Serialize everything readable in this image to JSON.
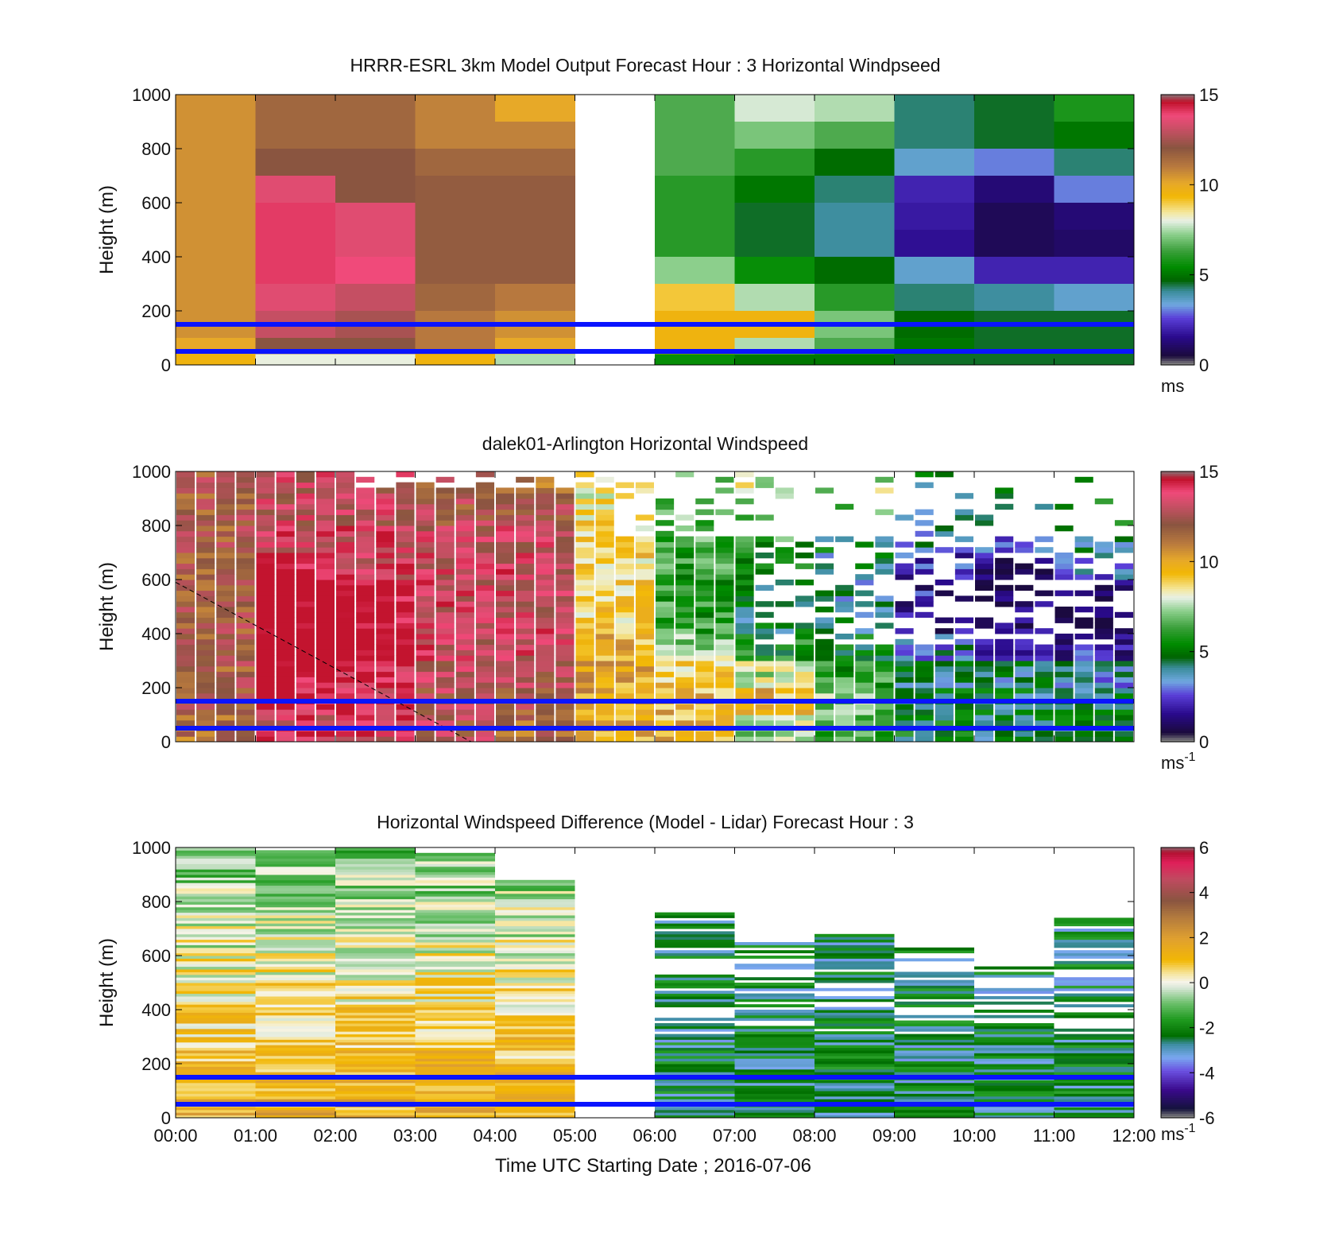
{
  "figure": {
    "colors": {
      "reference_line": "#0a14ff",
      "background": "#ffffff",
      "missing": "#808080"
    }
  },
  "chart_data": [
    {
      "type": "heatmap",
      "title": "HRRR-ESRL 3km Model Output   Forecast Hour : 3 Horizontal Windpseed",
      "ylabel": "Height (m)",
      "xlabel": "",
      "xlim": [
        0,
        12
      ],
      "ylim": [
        0,
        1000
      ],
      "yticks": [
        "0",
        "200",
        "400",
        "600",
        "800",
        "1000"
      ],
      "xticks": [],
      "colorbar": {
        "ticks": [
          "0",
          "5",
          "10",
          "15"
        ],
        "range": [
          0,
          15
        ],
        "unit": "ms",
        "unit_sup": ""
      },
      "reference_heights_m": [
        150,
        50
      ],
      "heights_m": [
        1000,
        900,
        800,
        700,
        600,
        500,
        400,
        300,
        200,
        100,
        40
      ],
      "hours_utc": [
        "00:00",
        "01:00",
        "02:00",
        "03:00",
        "04:00",
        "05:00",
        "06:00",
        "07:00",
        "08:00",
        "09:00",
        "10:00",
        "11:00"
      ],
      "wind_speed_ms": [
        [
          10.5,
          11.5,
          11.5,
          10.8,
          10.0,
          null,
          6.5,
          7.8,
          7.5,
          4.2,
          4.5,
          5.8
        ],
        [
          10.5,
          11.5,
          11.5,
          10.8,
          10.8,
          null,
          6.5,
          7.0,
          6.5,
          4.2,
          4.5,
          5.0
        ],
        [
          10.5,
          12.0,
          12.0,
          11.5,
          11.5,
          null,
          6.5,
          6.0,
          4.8,
          3.5,
          3.0,
          4.2
        ],
        [
          10.5,
          13.5,
          12.0,
          11.8,
          11.8,
          null,
          6.0,
          5.0,
          4.2,
          2.0,
          1.2,
          3.0
        ],
        [
          10.5,
          14.0,
          13.5,
          11.8,
          11.8,
          null,
          6.0,
          4.5,
          4.0,
          1.8,
          0.8,
          1.2
        ],
        [
          10.5,
          14.0,
          13.5,
          11.8,
          11.8,
          null,
          6.0,
          4.5,
          4.0,
          1.6,
          0.8,
          1.0
        ],
        [
          10.5,
          14.0,
          13.8,
          11.8,
          11.8,
          null,
          7.2,
          5.5,
          4.8,
          3.5,
          2.0,
          2.0
        ],
        [
          10.5,
          13.5,
          13.0,
          11.5,
          11.0,
          null,
          9.0,
          7.5,
          6.0,
          4.2,
          4.0,
          3.5
        ],
        [
          10.5,
          13.0,
          12.5,
          11.0,
          10.5,
          null,
          9.5,
          9.5,
          7.0,
          4.8,
          4.5,
          4.5
        ],
        [
          10.0,
          12.0,
          12.0,
          11.0,
          10.0,
          null,
          9.5,
          7.5,
          6.5,
          5.0,
          4.5,
          4.5
        ],
        [
          9.5,
          8.0,
          8.0,
          9.5,
          7.5,
          null,
          5.5,
          5.0,
          5.0,
          4.5,
          4.5,
          4.5
        ]
      ]
    },
    {
      "type": "heatmap",
      "title": "dalek01-Arlington  Horizontal Windspeed",
      "ylabel": "Height (m)",
      "xlabel": "",
      "xlim": [
        0,
        12
      ],
      "ylim": [
        0,
        1000
      ],
      "yticks": [
        "0",
        "200",
        "400",
        "600",
        "800",
        "1000"
      ],
      "xticks": [],
      "colorbar": {
        "ticks": [
          "0",
          "5",
          "10",
          "15"
        ],
        "range": [
          0,
          15
        ],
        "unit": "ms",
        "unit_sup": "-1"
      },
      "reference_heights_m": [
        150,
        50
      ],
      "reference_line_dashed": {
        "start_m": 590,
        "end_time_h": 3.7
      },
      "time_step_h": 0.25,
      "height_step_m": 20,
      "description_note": ""
    },
    {
      "type": "heatmap",
      "title": "Horizontal Windspeed Difference (Model - Lidar) Forecast Hour : 3",
      "ylabel": "Height (m)",
      "xlabel": "Time UTC  Starting Date ; 2016-07-06",
      "xlim": [
        0,
        12
      ],
      "ylim": [
        0,
        1000
      ],
      "yticks": [
        "0",
        "200",
        "400",
        "600",
        "800",
        "1000"
      ],
      "xticks": [
        "00:00",
        "01:00",
        "02:00",
        "03:00",
        "04:00",
        "05:00",
        "06:00",
        "07:00",
        "08:00",
        "09:00",
        "10:00",
        "11:00",
        "12:00"
      ],
      "colorbar": {
        "ticks": [
          "-6",
          "-4",
          "-2",
          "0",
          "2",
          "4",
          "6"
        ],
        "range": [
          -6,
          6
        ],
        "unit": "ms",
        "unit_sup": "-1"
      },
      "reference_heights_m": [
        150,
        50
      ],
      "data_top_m": [
        1000,
        990,
        1000,
        980,
        880,
        0,
        760,
        650,
        690,
        630,
        560,
        740
      ]
    }
  ]
}
